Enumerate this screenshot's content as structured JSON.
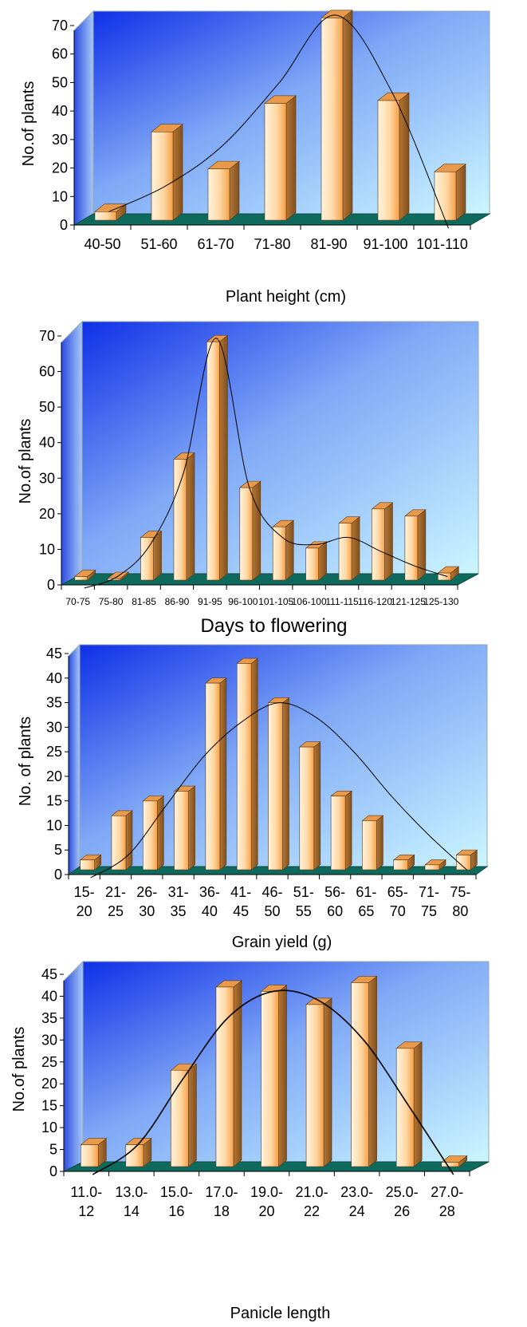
{
  "colors": {
    "wall_top": "#1030e8",
    "wall_bottom": "#c8f4ff",
    "floor": "#0f6a5e",
    "bar_light": "#fff3dc",
    "bar_dark": "#f7a14a",
    "bar_side": "#a86a2a",
    "bar_top": "#e89a4a"
  },
  "chart_data": [
    {
      "type": "bar",
      "categories": [
        "40-50",
        "51-60",
        "61-70",
        "71-80",
        "81-90",
        "91-100",
        "101-110"
      ],
      "values": [
        3,
        31,
        18,
        41,
        71,
        42,
        17
      ],
      "xlabel": "Plant height (cm)",
      "ylabel": "No.of plants",
      "ylim": [
        0,
        70
      ],
      "yticks": [
        0,
        10,
        20,
        30,
        40,
        50,
        60,
        70
      ],
      "trendline": [
        3,
        12,
        26,
        48,
        72,
        45,
        -10
      ],
      "grid": false
    },
    {
      "type": "bar",
      "categories": [
        "70-75",
        "75-80",
        "81-85",
        "86-90",
        "91-95",
        "96-100",
        "101-105",
        "106-100",
        "111-115",
        "116-120",
        "121-125",
        "125-130"
      ],
      "values": [
        1,
        0,
        12,
        34,
        67,
        26,
        15,
        9,
        16,
        20,
        18,
        2
      ],
      "xlabel": "Days to flowering",
      "ylabel": "No.of plants",
      "ylim": [
        0,
        70
      ],
      "yticks": [
        0,
        10,
        20,
        30,
        40,
        50,
        60,
        70
      ],
      "trendline": [
        -5,
        1,
        10,
        30,
        68,
        26,
        12,
        10,
        12,
        8,
        4,
        1
      ],
      "grid": false
    },
    {
      "type": "bar",
      "categories": [
        "15-\n20",
        "21-\n25",
        "26-\n30",
        "31-\n35",
        "36-\n40",
        "41-\n45",
        "46-\n50",
        "51-\n55",
        "56-\n60",
        "61-\n65",
        "65-\n70",
        "71-\n75",
        "75-\n80"
      ],
      "values": [
        2,
        11,
        14,
        16,
        38,
        42,
        34,
        25,
        15,
        10,
        2,
        1,
        3
      ],
      "xlabel": "Grain yield (g)",
      "ylabel": "No. of plants",
      "ylim": [
        0,
        45
      ],
      "yticks": [
        0,
        5,
        10,
        15,
        20,
        25,
        30,
        35,
        40,
        45
      ],
      "trendline": [
        -6,
        3,
        13,
        23,
        30,
        34,
        31,
        24,
        15,
        7,
        0
      ],
      "grid": false
    },
    {
      "type": "bar",
      "categories": [
        "11.0-\n12",
        "13.0-\n14",
        "15.0-\n16",
        "17.0-\n18",
        "19.0-\n20",
        "21.0-\n22",
        "23.0-\n24",
        "25.0-\n26",
        "27.0-\n28"
      ],
      "values": [
        5,
        5,
        22,
        41,
        40,
        37,
        42,
        27,
        1
      ],
      "xlabel": "Panicle length",
      "ylabel": "No.of plants",
      "ylim": [
        0,
        45
      ],
      "yticks": [
        0,
        5,
        10,
        15,
        20,
        25,
        30,
        35,
        40,
        45
      ],
      "trendline": [
        -6,
        5,
        20,
        34,
        40,
        38,
        29,
        14,
        -2
      ],
      "grid": false
    }
  ]
}
